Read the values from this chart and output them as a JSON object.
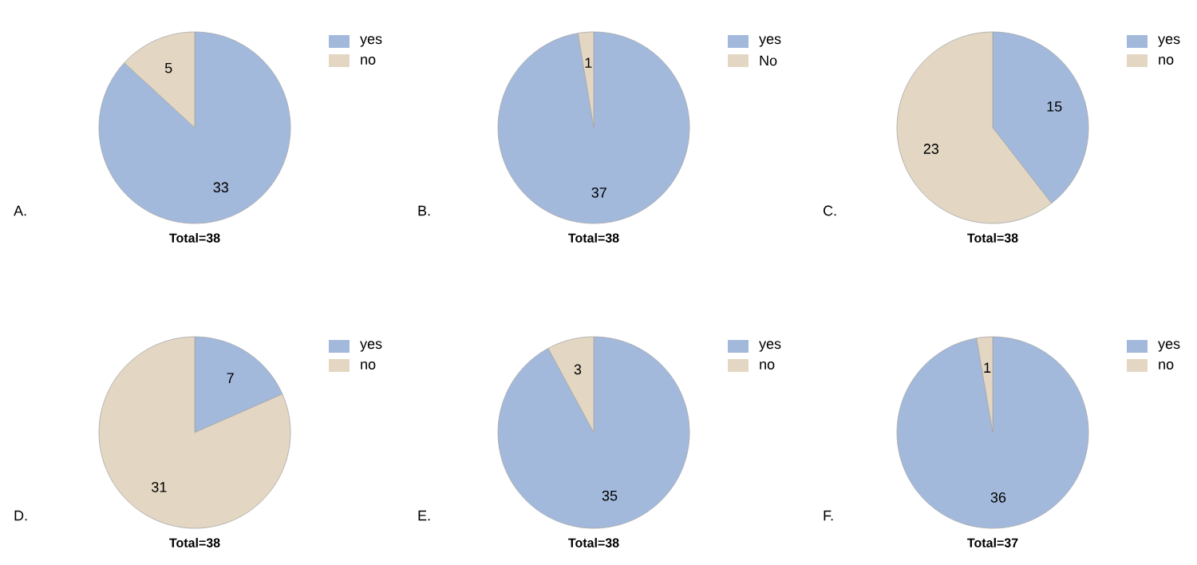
{
  "chart_data": [
    {
      "type": "pie",
      "categories": [
        "yes",
        "no"
      ],
      "values": [
        33,
        5
      ],
      "colors": [
        "#a2b9dc",
        "#e3d7c3"
      ],
      "data_labels": true,
      "legend": "top right",
      "xlabel": "Total=38",
      "annotations": [
        "A."
      ]
    },
    {
      "type": "pie",
      "categories": [
        "yes",
        "No"
      ],
      "values": [
        37,
        1
      ],
      "colors": [
        "#a2b9dc",
        "#e3d7c3"
      ],
      "data_labels": true,
      "legend": "top right",
      "xlabel": "Total=38",
      "annotations": [
        "B."
      ]
    },
    {
      "type": "pie",
      "categories": [
        "yes",
        "no"
      ],
      "values": [
        15,
        23
      ],
      "colors": [
        "#a2b9dc",
        "#e3d7c3"
      ],
      "data_labels": true,
      "legend": "top right",
      "xlabel": "Total=38",
      "annotations": [
        "C."
      ]
    },
    {
      "type": "pie",
      "categories": [
        "yes",
        "no"
      ],
      "values": [
        7,
        31
      ],
      "colors": [
        "#a2b9dc",
        "#e3d7c3"
      ],
      "data_labels": true,
      "legend": "top right",
      "xlabel": "Total=38",
      "annotations": [
        "D."
      ]
    },
    {
      "type": "pie",
      "categories": [
        "yes",
        "no"
      ],
      "values": [
        35,
        3
      ],
      "colors": [
        "#a2b9dc",
        "#e3d7c3"
      ],
      "data_labels": true,
      "legend": "top right",
      "xlabel": "Total=38",
      "annotations": [
        "E."
      ]
    },
    {
      "type": "pie",
      "categories": [
        "yes",
        "no"
      ],
      "values": [
        36,
        1
      ],
      "colors": [
        "#a2b9dc",
        "#e3d7c3"
      ],
      "data_labels": true,
      "legend": "top right",
      "xlabel": "Total=37",
      "annotations": [
        "F."
      ]
    }
  ]
}
